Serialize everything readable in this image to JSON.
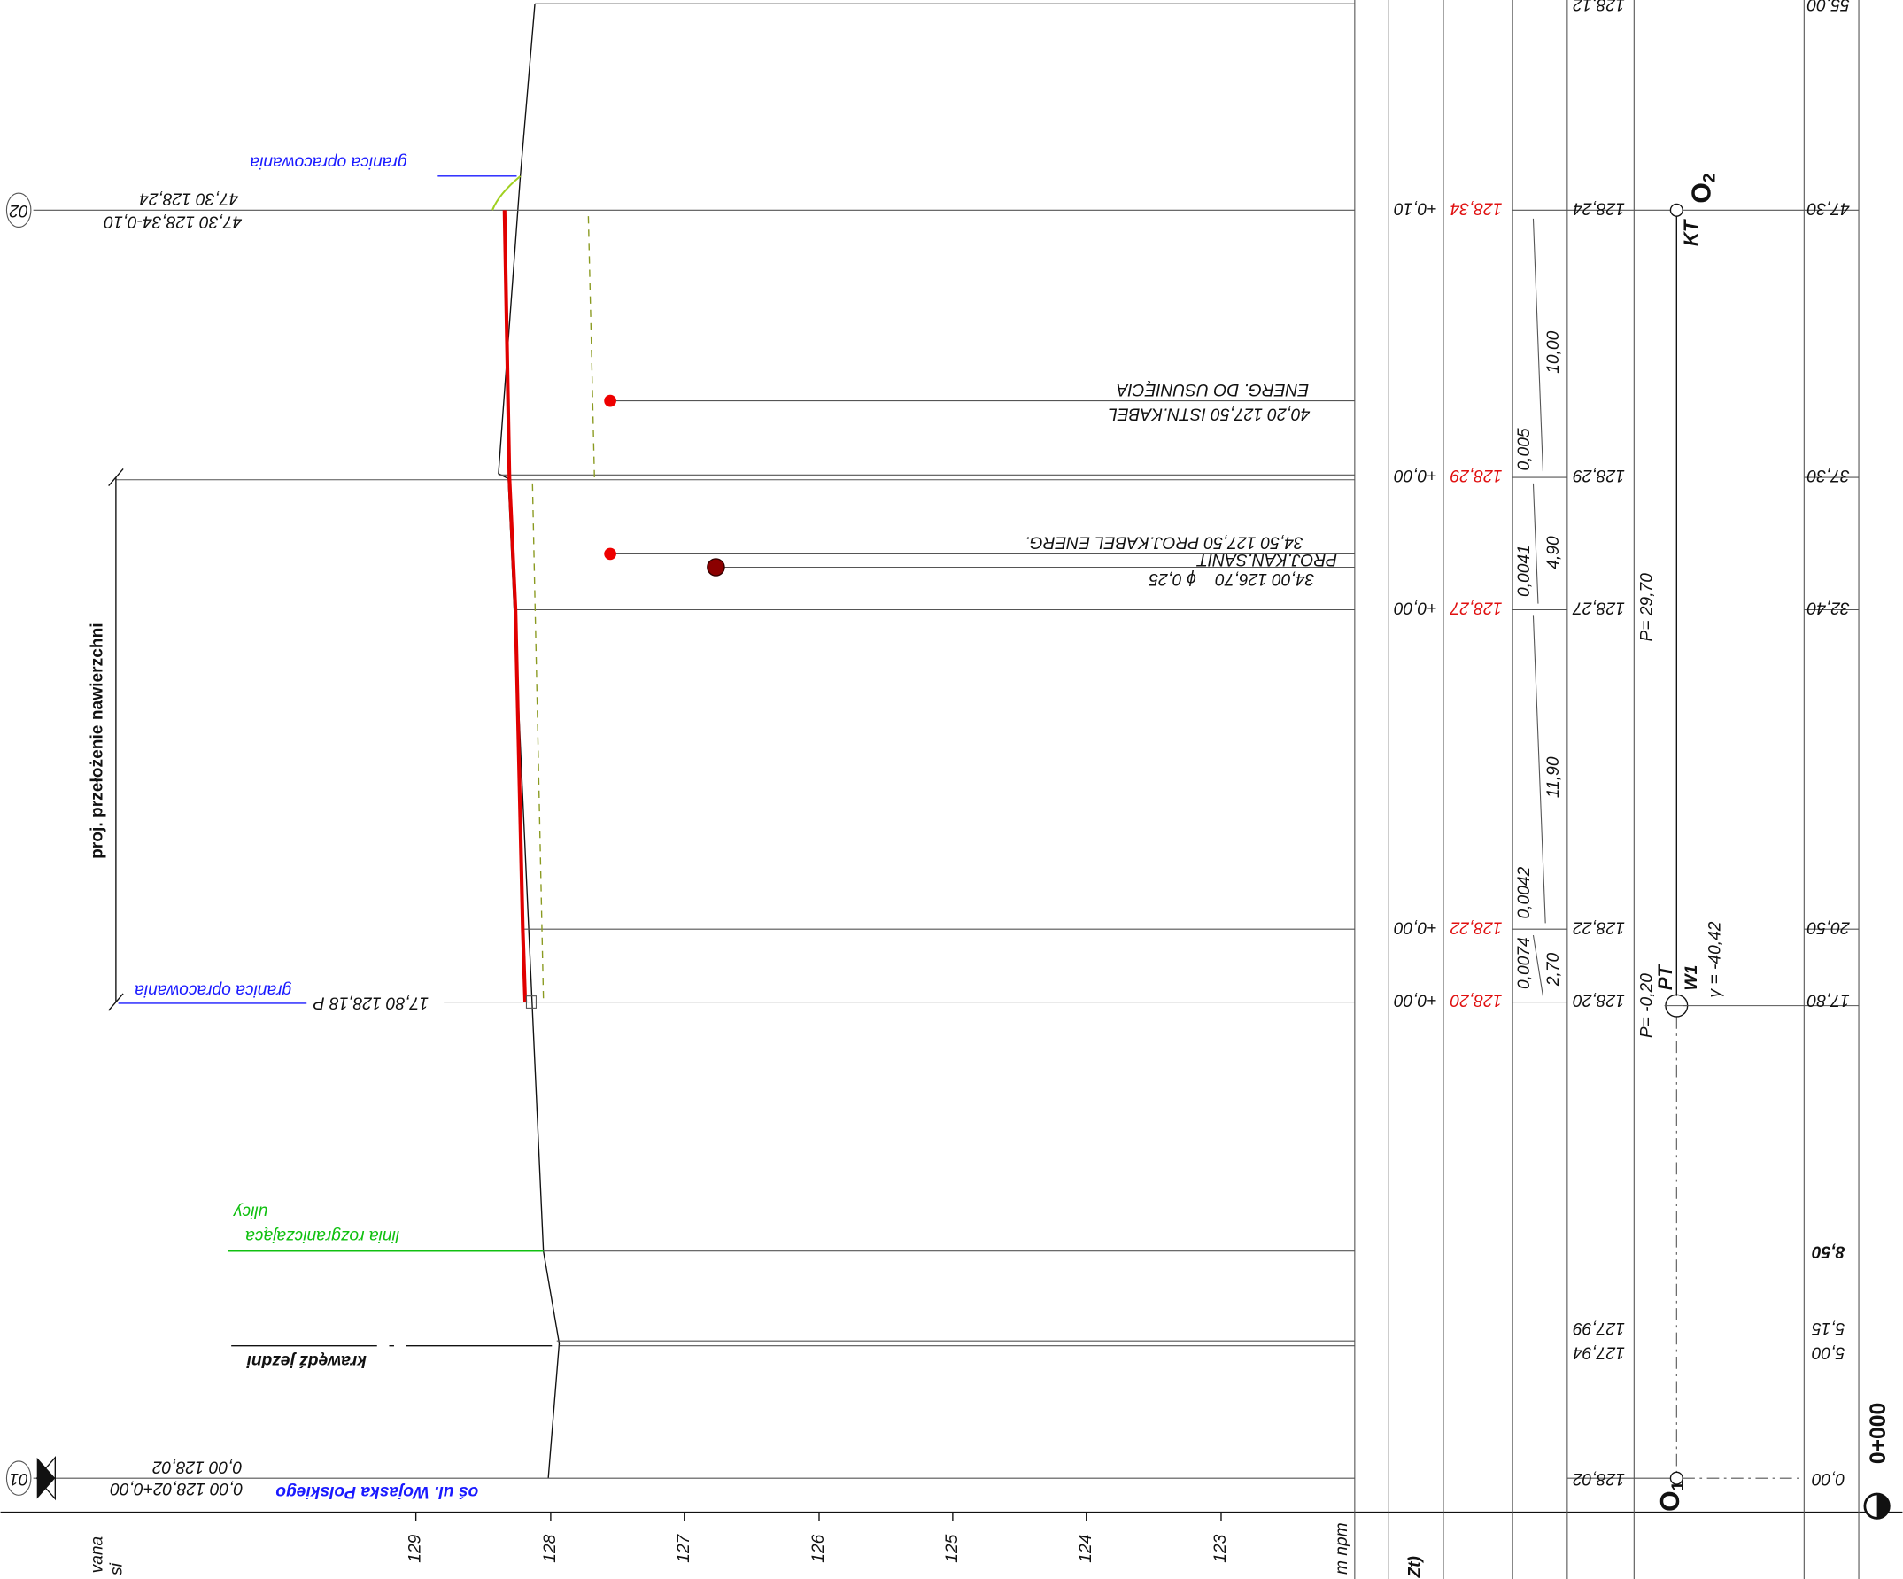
{
  "points": [
    {
      "id": "01",
      "label_top": "0,00  128,02",
      "label_bottom": "0,00 128,02+0,00"
    },
    {
      "id": "02",
      "label_top": "47,30  128,24",
      "label_bottom": "47,30 128,34-0,10"
    }
  ],
  "annotations": {
    "boundary_top": "granica opracowania",
    "boundary_bottom": "granica opracowania",
    "resurfacing": "proj. przełożenie nawierzchni",
    "point_p": "17,80 128,18 P",
    "street_line_1": "linia rozgraniczająca",
    "street_line_2": "ulicy",
    "road_edge": "krawędź jezdni",
    "axis_name": "oś ul. Wojaska Polskiego"
  },
  "utilities": {
    "cable_existing_1": "40,20 127,50 ISTN.KABEL",
    "cable_existing_2": "ENERG. DO USUNIĘCIA",
    "cable_proj": "34,50 127,50 PROJ.KABEL ENERG.",
    "sewer_1": "PROJ.KAN.SANIT",
    "sewer_2": "34,00 126,70",
    "sewer_diam": "ϕ 0,25"
  },
  "scale": {
    "ticks": [
      "129",
      "128",
      "127",
      "126",
      "125",
      "124",
      "123"
    ],
    "unit": "m npm"
  },
  "cut_labels": {
    "left_1": "vana",
    "left_2": "si",
    "column": "Zt)"
  },
  "rows": [
    {
      "station": "55,00",
      "terrain": "128,12"
    },
    {
      "station": "47,30",
      "terrain": "128,24",
      "design": "128,34",
      "offset": "+0,10"
    },
    {
      "station": "37,30",
      "terrain": "128,29",
      "design": "128,29",
      "offset": "+0,00"
    },
    {
      "station": "32,40",
      "terrain": "128,27",
      "design": "128,27",
      "offset": "+0,00"
    },
    {
      "station": "20,50",
      "terrain": "128,22",
      "design": "128,22",
      "offset": "+0,00"
    },
    {
      "station": "17,80",
      "terrain": "128,20",
      "design": "128,20",
      "offset": "+0,00"
    },
    {
      "station": "8,50"
    },
    {
      "station": "5,15",
      "terrain": "127,99"
    },
    {
      "station": "5,00",
      "terrain": "127,94"
    },
    {
      "station": "0,00",
      "terrain": "128,02"
    }
  ],
  "slopes": [
    {
      "slope": "0,005",
      "length": "10,00"
    },
    {
      "slope": "0,0041",
      "length": "4,90"
    },
    {
      "slope": "0,0042",
      "length": "11,90"
    },
    {
      "slope": "0,0074",
      "length": "2,70"
    }
  ],
  "geometry": {
    "end_name": "O",
    "end_sub": "2",
    "end_type": "KT",
    "start_name": "O",
    "start_sub": "1",
    "p_main": "P= 29,70",
    "p_start": "P= -0,20",
    "pt": "PT",
    "w1": "W1",
    "gamma": "γ = -40,42"
  },
  "chainage": "0+000"
}
